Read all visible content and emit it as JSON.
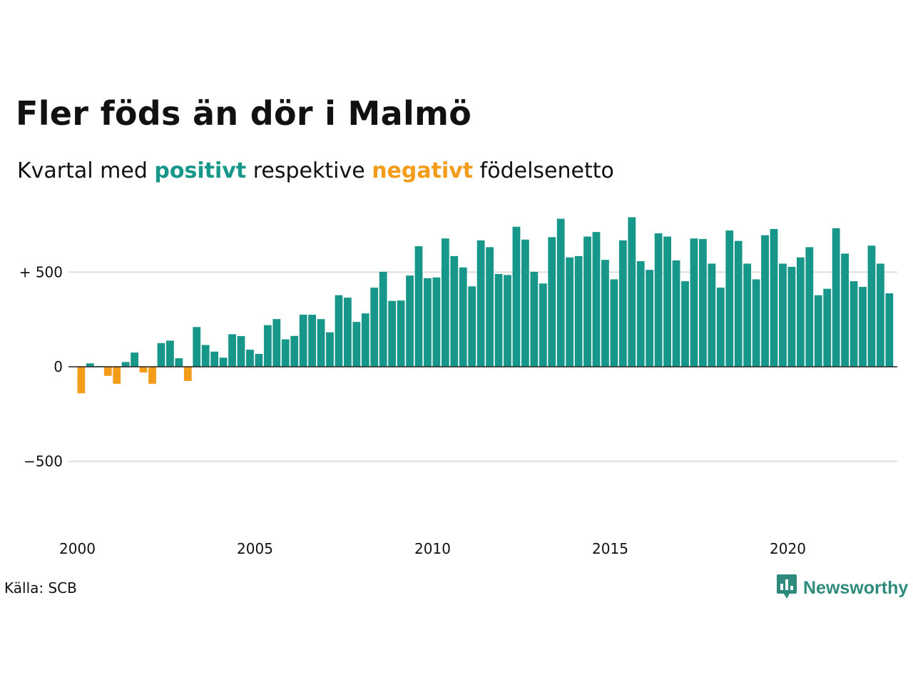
{
  "header": {
    "title": "Fler föds än dör i Malmö",
    "subtitle_prefix": "Kvartal med ",
    "subtitle_positive": "positivt",
    "subtitle_middle": " respektive ",
    "subtitle_negative": "negativt",
    "subtitle_suffix": " födelsenetto"
  },
  "footer": {
    "source": "Källa: SCB",
    "brand": "Newsworthy"
  },
  "colors": {
    "positive": "#16978a",
    "negative": "#f39c1a",
    "grid": "#dddddd",
    "baseline": "#222222",
    "brand": "#2e8a7c"
  },
  "icons": {
    "brand_logo": "newsworthy-logo-icon"
  },
  "chart_data": {
    "type": "bar",
    "title": "Fler föds än dör i Malmö",
    "subtitle": "Kvartal med positivt respektive negativt födelsenetto",
    "xlabel": "",
    "ylabel": "",
    "ylim": [
      -900,
      875
    ],
    "yticks": [
      {
        "value": 500,
        "label": "+ 500"
      },
      {
        "value": 0,
        "label": "0"
      },
      {
        "value": -500,
        "label": "−500"
      }
    ],
    "xticks": [
      {
        "year": 2000,
        "label": "2000"
      },
      {
        "year": 2005,
        "label": "2005"
      },
      {
        "year": 2010,
        "label": "2010"
      },
      {
        "year": 2015,
        "label": "2015"
      },
      {
        "year": 2020,
        "label": "2020"
      }
    ],
    "grid": true,
    "legend": "none",
    "series": [
      {
        "start_year": 2000,
        "start_quarter": 1,
        "values": [
          -140,
          18,
          4,
          -48,
          -90,
          25,
          75,
          -30,
          -90,
          125,
          138,
          45,
          -75,
          210,
          115,
          80,
          48,
          172,
          162,
          90,
          68,
          220,
          252,
          145,
          163,
          275,
          275,
          252,
          182,
          378,
          365,
          237,
          282,
          418,
          502,
          348,
          350,
          482,
          637,
          468,
          472,
          678,
          585,
          525,
          425,
          668,
          632,
          490,
          485,
          740,
          672,
          502,
          440,
          685,
          782,
          578,
          585,
          688,
          712,
          565,
          462,
          668,
          790,
          558,
          512,
          705,
          688,
          562,
          452,
          678,
          675,
          545,
          418,
          720,
          665,
          545,
          462,
          695,
          728,
          545,
          528,
          578,
          632,
          378,
          412,
          732,
          598,
          452,
          422,
          640,
          545,
          388
        ]
      }
    ]
  }
}
